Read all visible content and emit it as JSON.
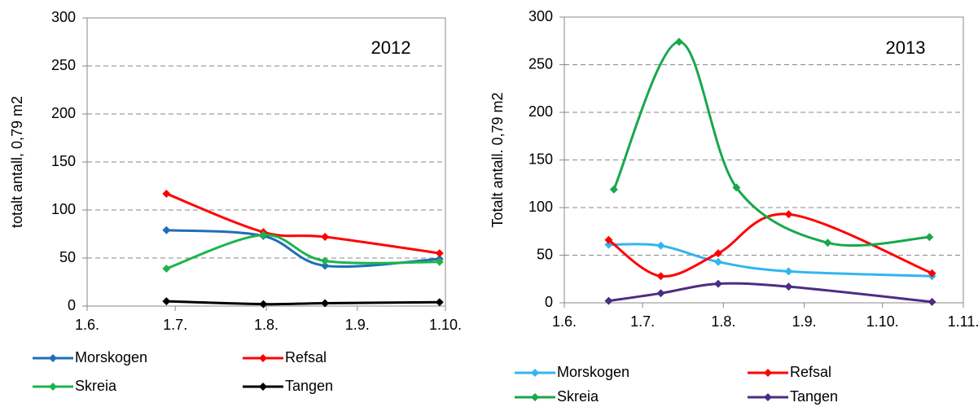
{
  "chart_data": [
    {
      "type": "line",
      "annotation": "2012",
      "ylabel": "totalt antall, 0,79 m2",
      "xlim": [
        152,
        274
      ],
      "xticks": [
        {
          "value": 152,
          "label": "1.6."
        },
        {
          "value": 182,
          "label": "1.7."
        },
        {
          "value": 213,
          "label": "1.8."
        },
        {
          "value": 244,
          "label": "1.9."
        },
        {
          "value": 274,
          "label": "1.10."
        }
      ],
      "ylim": [
        0,
        300
      ],
      "yticks": [
        0,
        50,
        100,
        150,
        200,
        250,
        300
      ],
      "grid": true,
      "series": [
        {
          "name": "Morskogen",
          "color": "#1f6fb4",
          "x": [
            179,
            212,
            233,
            272
          ],
          "values": [
            79,
            73,
            42,
            49
          ]
        },
        {
          "name": "Refsal",
          "color": "#ff0000",
          "x": [
            179,
            212,
            233,
            272
          ],
          "values": [
            117,
            77,
            72,
            55
          ]
        },
        {
          "name": "Skreia",
          "color": "#1db34f",
          "x": [
            179,
            212,
            233,
            272
          ],
          "values": [
            39,
            74,
            47,
            46
          ]
        },
        {
          "name": "Tangen",
          "color": "#000000",
          "x": [
            179,
            212,
            233,
            272
          ],
          "values": [
            5,
            2,
            3,
            4
          ]
        }
      ]
    },
    {
      "type": "line",
      "annotation": "2013",
      "ylabel": "Totalt antall. 0,79 m2",
      "xlim": [
        152,
        305
      ],
      "xticks": [
        {
          "value": 152,
          "label": "1.6."
        },
        {
          "value": 182,
          "label": "1.7."
        },
        {
          "value": 213,
          "label": "1.8."
        },
        {
          "value": 244,
          "label": "1.9."
        },
        {
          "value": 274,
          "label": "1.10."
        },
        {
          "value": 305,
          "label": "1.11."
        }
      ],
      "ylim": [
        0,
        300
      ],
      "yticks": [
        0,
        50,
        100,
        150,
        200,
        250,
        300
      ],
      "grid": true,
      "series": [
        {
          "name": "Morskogen",
          "color": "#33b5f0",
          "x": [
            169,
            189,
            211,
            238,
            293
          ],
          "values": [
            61,
            60,
            43,
            33,
            28
          ]
        },
        {
          "name": "Refsal",
          "color": "#ff0000",
          "x": [
            169,
            189,
            211,
            238,
            293
          ],
          "values": [
            66,
            28,
            52,
            93,
            31
          ]
        },
        {
          "name": "Skreia",
          "color": "#17a84a",
          "x": [
            171,
            196,
            218,
            253,
            292
          ],
          "values": [
            119,
            274,
            121,
            63,
            69
          ]
        },
        {
          "name": "Tangen",
          "color": "#4b2e83",
          "x": [
            169,
            189,
            211,
            238,
            293
          ],
          "values": [
            2,
            10,
            20,
            17,
            1
          ]
        }
      ]
    }
  ]
}
